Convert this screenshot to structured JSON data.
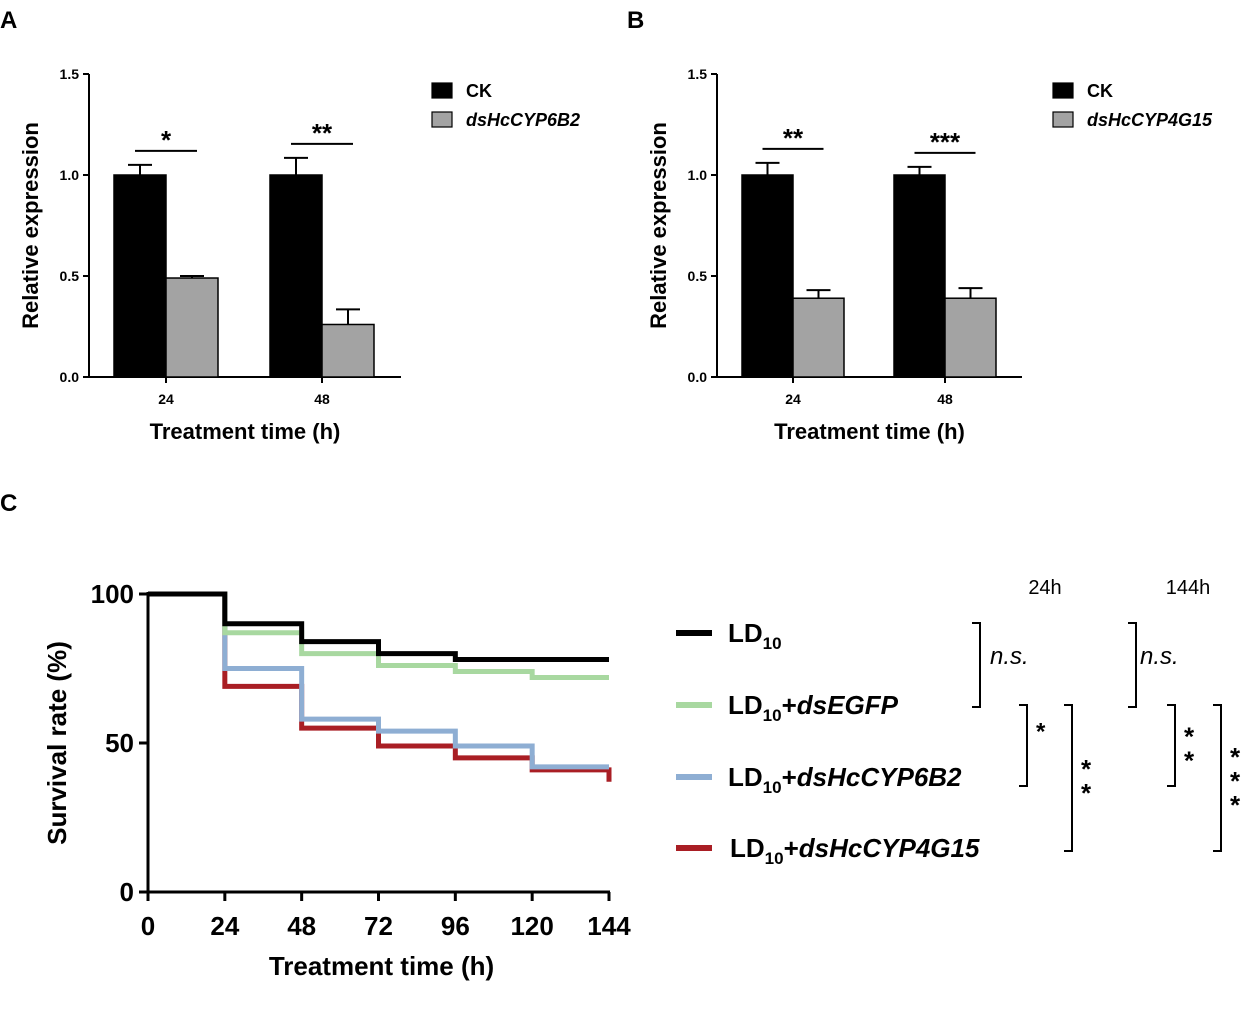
{
  "panels": {
    "A": {
      "label": "A"
    },
    "B": {
      "label": "B"
    },
    "C": {
      "label": "C"
    }
  },
  "chart_data": [
    {
      "id": "A",
      "type": "bar",
      "ylabel": "Relative expression",
      "xlabel": "Treatment time (h)",
      "ylim": [
        0,
        1.5
      ],
      "yticks": [
        "0.0",
        "0.5",
        "1.0",
        "1.5"
      ],
      "ytick_values": [
        0,
        0.5,
        1.0,
        1.5
      ],
      "categories": [
        "24",
        "48"
      ],
      "series": [
        {
          "name": "CK",
          "italic": false,
          "color": "#000000",
          "values": [
            1.0,
            1.0
          ],
          "errors": [
            0.05,
            0.085
          ]
        },
        {
          "name": "dsHcCYP6B2",
          "italic": true,
          "color": "#a3a3a3",
          "values": [
            0.49,
            0.26
          ],
          "errors": [
            0.01,
            0.075
          ]
        }
      ],
      "significance": [
        "*",
        "**"
      ]
    },
    {
      "id": "B",
      "type": "bar",
      "ylabel": "Relative expression",
      "xlabel": "Treatment time (h)",
      "ylim": [
        0,
        1.5
      ],
      "yticks": [
        "0.0",
        "0.5",
        "1.0",
        "1.5"
      ],
      "ytick_values": [
        0,
        0.5,
        1.0,
        1.5
      ],
      "categories": [
        "24",
        "48"
      ],
      "series": [
        {
          "name": "CK",
          "italic": false,
          "color": "#000000",
          "values": [
            1.0,
            1.0
          ],
          "errors": [
            0.06,
            0.04
          ]
        },
        {
          "name": "dsHcCYP4G15",
          "italic": true,
          "color": "#a3a3a3",
          "values": [
            0.39,
            0.39
          ],
          "errors": [
            0.04,
            0.05
          ]
        }
      ],
      "significance": [
        "**",
        "***"
      ]
    },
    {
      "id": "C",
      "type": "line",
      "step": true,
      "ylabel": "Survival rate (%)",
      "xlabel": "Treatment time (h)",
      "xlim": [
        0,
        144
      ],
      "ylim": [
        0,
        100
      ],
      "xticks": [
        0,
        24,
        48,
        72,
        96,
        120,
        144
      ],
      "xtick_labels": [
        "0",
        "24",
        "48",
        "72",
        "96",
        "120",
        "144"
      ],
      "yticks": [
        0,
        50,
        100
      ],
      "ytick_labels": [
        "0",
        "50",
        "100"
      ],
      "x": [
        0,
        24,
        48,
        72,
        96,
        120,
        144
      ],
      "series": [
        {
          "name": "LD10",
          "base": "LD",
          "sub": "10",
          "suffix": "",
          "color": "#000000",
          "values": [
            100,
            90,
            84,
            80,
            78,
            78,
            78
          ]
        },
        {
          "name": "LD10+dsEGFP",
          "base": "LD",
          "sub": "10",
          "suffix": "dsEGFP",
          "color": "#a8d8a0",
          "values": [
            100,
            87,
            80,
            76,
            74,
            72,
            72
          ]
        },
        {
          "name": "LD10+dsHcCYP6B2",
          "base": "LD",
          "sub": "10",
          "suffix": "dsHcCYP6B2",
          "color": "#8eaed3",
          "values": [
            100,
            75,
            58,
            54,
            49,
            42,
            42
          ]
        },
        {
          "name": "LD10+dsHcCYP4G15",
          "base": "LD",
          "sub": "10",
          "suffix": "dsHcCYP4G15",
          "color": "#a91e24",
          "values": [
            100,
            69,
            55,
            49,
            45,
            41,
            37
          ]
        }
      ],
      "significance_columns": [
        {
          "header": "24h",
          "comparisons": [
            {
              "label": "n.s.",
              "italic": true
            },
            {
              "label": "*",
              "italic": false
            },
            {
              "label": "**",
              "italic": false
            }
          ]
        },
        {
          "header": "144h",
          "comparisons": [
            {
              "label": "n.s.",
              "italic": true
            },
            {
              "label": "**",
              "italic": false
            },
            {
              "label": "***",
              "italic": false
            }
          ]
        }
      ]
    }
  ]
}
